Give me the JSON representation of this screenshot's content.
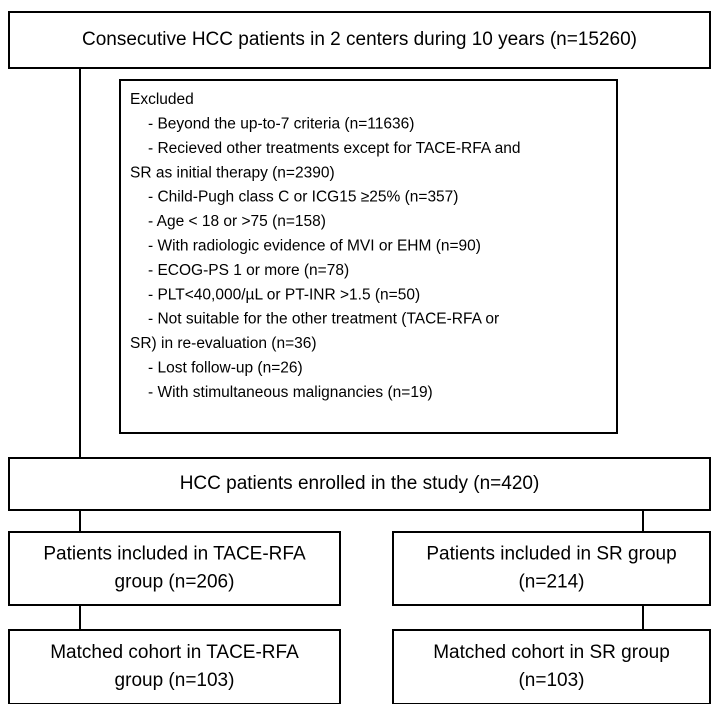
{
  "nodes": [
    {
      "lines": [
        "Consecutive HCC patients in 2 centers during 10 years  (n=15260)"
      ]
    },
    {
      "title": "Excluded",
      "items": [
        {
          "lines": [
            "- Beyond the up-to-7 criteria (n=11636)"
          ]
        },
        {
          "lines": [
            "- Recieved other treatments except for TACE-RFA and",
            "SR as initial therapy (n=2390)"
          ]
        },
        {
          "lines": [
            "- Child-Pugh class C or ICG15 ≥25% (n=357)"
          ]
        },
        {
          "lines": [
            "- Age < 18 or >75 (n=158)"
          ]
        },
        {
          "lines": [
            "- With radiologic evidence of MVI or EHM (n=90)"
          ]
        },
        {
          "lines": [
            "- ECOG-PS 1 or more (n=78)"
          ]
        },
        {
          "lines": [
            "- PLT<40,000/µL or PT-INR >1.5 (n=50)"
          ]
        },
        {
          "lines": [
            "- Not suitable for the other treatment (TACE-RFA or",
            "SR) in re-evaluation (n=36)"
          ]
        },
        {
          "lines": [
            "- Lost follow-up (n=26)"
          ]
        },
        {
          "lines": [
            "- With stimultaneous malignancies (n=19)"
          ]
        }
      ]
    },
    {
      "lines": [
        "HCC patients enrolled in the study  (n=420)"
      ]
    },
    {
      "lines": [
        "Patients included in TACE-RFA",
        "group (n=206)"
      ]
    },
    {
      "lines": [
        "Patients included in SR group",
        "(n=214)"
      ]
    },
    {
      "lines": [
        "Matched cohort in TACE-RFA",
        "group (n=103)"
      ]
    },
    {
      "lines": [
        "Matched cohort in SR group",
        "(n=103)"
      ]
    }
  ]
}
